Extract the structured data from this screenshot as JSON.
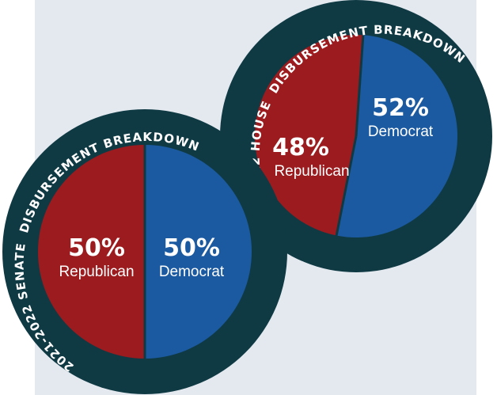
{
  "colors": {
    "panel": "#e4e9f0",
    "ring": "#0f3a44",
    "republican": "#9b1b1f",
    "democrat": "#1b5aa0",
    "divider": "#0f3a44",
    "text": "#ffffff"
  },
  "chart_data": [
    {
      "type": "pie",
      "title": "2021-2022 SENATE DISBURSEMENT BREAKDOWN",
      "title_top": "DISBURSEMENT BREAKDOWN",
      "title_left": "2021-2022 SENATE",
      "slices": [
        {
          "label": "Republican",
          "value": 50,
          "value_label": "50%",
          "color": "#9b1b1f"
        },
        {
          "label": "Democrat",
          "value": 50,
          "value_label": "50%",
          "color": "#1b5aa0"
        }
      ]
    },
    {
      "type": "pie",
      "title": "2021-2022 HOUSE DISBURSEMENT BREAKDOWN",
      "title_top": "DISBURSEMENT BREAKDOWN",
      "title_left": "2021-2022 HOUSE",
      "slices": [
        {
          "label": "Republican",
          "value": 48,
          "value_label": "48%",
          "color": "#9b1b1f"
        },
        {
          "label": "Democrat",
          "value": 52,
          "value_label": "52%",
          "color": "#1b5aa0"
        }
      ]
    }
  ]
}
